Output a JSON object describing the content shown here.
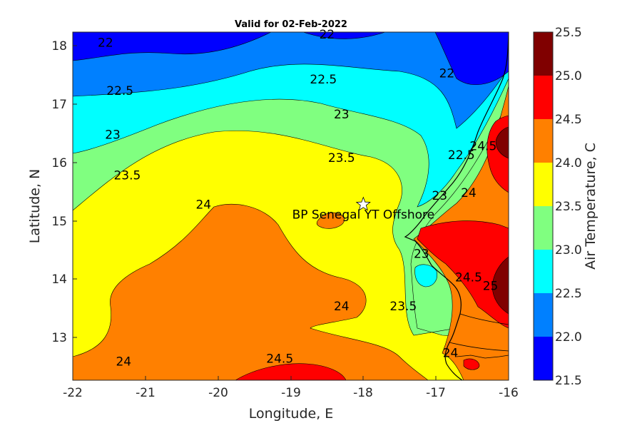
{
  "title": "Valid for 02-Feb-2022",
  "xlabel": "Longitude, E",
  "ylabel": "Latitude, N",
  "colorbar_label": "Air Temperature, C",
  "x_ticks": [
    "-22",
    "-21",
    "-20",
    "-19",
    "-18",
    "-17",
    "-16"
  ],
  "y_ticks": [
    "18",
    "17",
    "16",
    "15",
    "14",
    "13"
  ],
  "colorbar_ticks": [
    "25.5",
    "25.0",
    "24.5",
    "24.0",
    "23.5",
    "23.0",
    "22.5",
    "22.0",
    "21.5"
  ],
  "site": {
    "name": "BP Senegal YT Offshore",
    "lon": -18.0,
    "lat": 15.27
  },
  "colors": {
    "21.5-22.0": "#0000ff",
    "22.0-22.5": "#0080ff",
    "22.5-23.0": "#00ffff",
    "23.0-23.5": "#80ff80",
    "23.5-24.0": "#ffff00",
    "24.0-24.5": "#ff8000",
    "24.5-25.0": "#ff0000",
    "25.0-25.5": "#800000"
  },
  "contour_labels": [
    {
      "text": "22",
      "lon": -21.55,
      "lat": 17.98
    },
    {
      "text": "22",
      "lon": -18.5,
      "lat": 18.12
    },
    {
      "text": "22",
      "lon": -16.85,
      "lat": 17.45
    },
    {
      "text": "22.5",
      "lon": -21.35,
      "lat": 17.15
    },
    {
      "text": "22.5",
      "lon": -18.55,
      "lat": 17.35
    },
    {
      "text": "22.5",
      "lon": -16.65,
      "lat": 16.05
    },
    {
      "text": "23",
      "lon": -21.45,
      "lat": 16.4
    },
    {
      "text": "23",
      "lon": -18.3,
      "lat": 16.75
    },
    {
      "text": "23",
      "lon": -16.95,
      "lat": 15.35
    },
    {
      "text": "23",
      "lon": -17.2,
      "lat": 14.35
    },
    {
      "text": "23.5",
      "lon": -21.25,
      "lat": 15.7
    },
    {
      "text": "23.5",
      "lon": -18.3,
      "lat": 16.0
    },
    {
      "text": "23.5",
      "lon": -17.45,
      "lat": 13.45
    },
    {
      "text": "24",
      "lon": -20.2,
      "lat": 15.2
    },
    {
      "text": "24",
      "lon": -18.3,
      "lat": 13.45
    },
    {
      "text": "24",
      "lon": -21.3,
      "lat": 12.5
    },
    {
      "text": "24",
      "lon": -16.55,
      "lat": 15.4
    },
    {
      "text": "24",
      "lon": -16.8,
      "lat": 12.65
    },
    {
      "text": "24.5",
      "lon": -19.15,
      "lat": 12.55
    },
    {
      "text": "24.5",
      "lon": -16.35,
      "lat": 16.2
    },
    {
      "text": "24.5",
      "lon": -16.55,
      "lat": 13.95
    },
    {
      "text": "25",
      "lon": -16.25,
      "lat": 13.8
    }
  ]
}
